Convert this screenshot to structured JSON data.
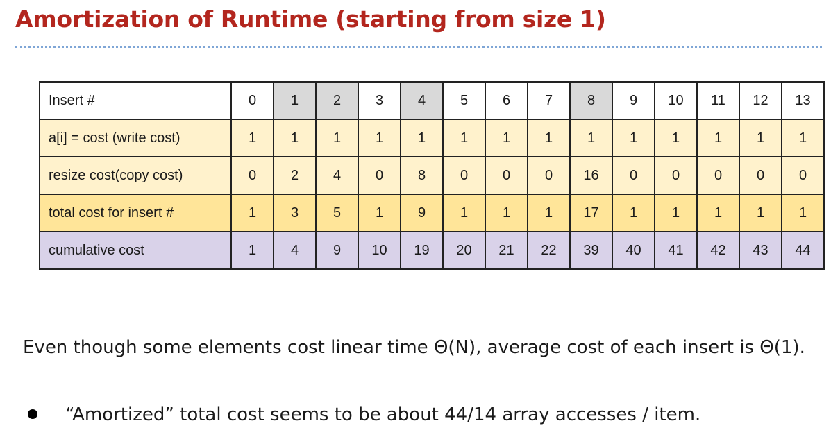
{
  "slide": {
    "title": "Amortization of Runtime (starting from size 1)"
  },
  "table": {
    "highlighted_columns": [
      "1",
      "2",
      "4",
      "8"
    ],
    "colors": {
      "header_highlight": "#d9d9d9",
      "cost_rows": "#fff2cc",
      "total_row": "#ffe599",
      "cumulative_row": "#d9d2e9"
    },
    "rows": [
      {
        "label": "Insert #",
        "values": [
          "0",
          "1",
          "2",
          "3",
          "4",
          "5",
          "6",
          "7",
          "8",
          "9",
          "10",
          "11",
          "12",
          "13"
        ]
      },
      {
        "label": "a[i] = cost (write cost)",
        "values": [
          "1",
          "1",
          "1",
          "1",
          "1",
          "1",
          "1",
          "1",
          "1",
          "1",
          "1",
          "1",
          "1",
          "1"
        ]
      },
      {
        "label": "resize cost(copy cost)",
        "values": [
          "0",
          "2",
          "4",
          "0",
          "8",
          "0",
          "0",
          "0",
          "16",
          "0",
          "0",
          "0",
          "0",
          "0"
        ]
      },
      {
        "label": "total cost for insert #",
        "values": [
          "1",
          "3",
          "5",
          "1",
          "9",
          "1",
          "1",
          "1",
          "17",
          "1",
          "1",
          "1",
          "1",
          "1"
        ]
      },
      {
        "label": "cumulative cost",
        "values": [
          "1",
          "4",
          "9",
          "10",
          "19",
          "20",
          "21",
          "22",
          "39",
          "40",
          "41",
          "42",
          "43",
          "44"
        ]
      }
    ]
  },
  "text": {
    "paragraph": "Even though some elements cost linear time Θ(N), average cost of each insert is Θ(1).",
    "bullet": "“Amortized” total cost seems to be about 44/14 array accesses / item."
  }
}
